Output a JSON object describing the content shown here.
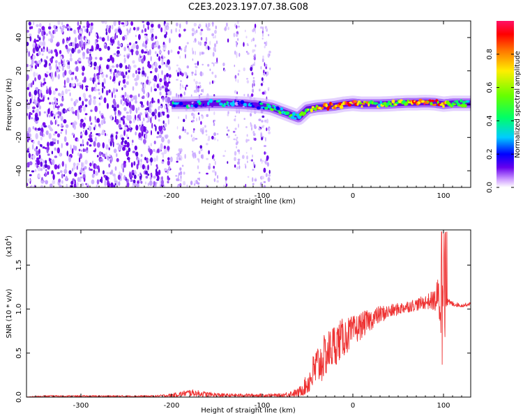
{
  "figure_title": "C2E3.2023.197.07.38.G08",
  "chart_data": [
    {
      "type": "heatmap",
      "description_label": "spectrogram",
      "xlabel": "Height of straight line (km)",
      "ylabel": "Frequency (Hz)",
      "xlim": [
        -360,
        130
      ],
      "ylim": [
        -50,
        50
      ],
      "x_ticks": [
        -300,
        -200,
        -100,
        0,
        100
      ],
      "y_ticks": [
        -40,
        -20,
        0,
        20,
        40
      ],
      "grid": false,
      "colorbar": {
        "label": "Normalized spectral amplitude",
        "range": [
          0.0,
          1.0
        ],
        "ticks": [
          0.0,
          0.2,
          0.4,
          0.6,
          0.8
        ],
        "tick_labels": [
          "0.0",
          "0.2",
          "0.4",
          "0.6",
          "0.8"
        ],
        "colormap": [
          "#ffffff",
          "#cc99ff",
          "#6600ee",
          "#0000ff",
          "#00ccff",
          "#00ff66",
          "#66ff00",
          "#ffee00",
          "#ff7700",
          "#ff0000",
          "#ff1166"
        ]
      },
      "noise_regions": [
        {
          "x": [
            -360,
            -200
          ],
          "freq_range": [
            -50,
            50
          ],
          "intensity": "dense purple speckle"
        },
        {
          "x": [
            -200,
            -90
          ],
          "freq_range": [
            -50,
            50
          ],
          "intensity": "sparse light-purple speckle in vertical streaks"
        }
      ],
      "signal_track": {
        "x": [
          -200,
          -180,
          -160,
          -140,
          -120,
          -100,
          -90,
          -80,
          -70,
          -60,
          -50,
          -40,
          -30,
          -20,
          -10,
          0,
          10,
          20,
          30,
          40,
          50,
          60,
          70,
          80,
          90,
          100,
          110,
          120,
          130
        ],
        "freq": [
          0,
          0,
          0.5,
          0.5,
          0,
          -1,
          -2,
          -4,
          -6,
          -8,
          -3,
          -2,
          -1.5,
          -1,
          0,
          0.5,
          0,
          0,
          0,
          0.2,
          0.5,
          0.8,
          0.8,
          1,
          0.8,
          0,
          0.5,
          0.5,
          0.5
        ],
        "amplitude": [
          0.25,
          0.25,
          0.3,
          0.3,
          0.25,
          0.3,
          0.4,
          0.45,
          0.5,
          0.5,
          0.6,
          0.75,
          0.85,
          0.8,
          0.85,
          0.9,
          0.8,
          0.7,
          0.55,
          0.6,
          0.65,
          0.7,
          0.85,
          0.9,
          0.8,
          0.9,
          0.6,
          0.5,
          0.5
        ]
      }
    },
    {
      "type": "line",
      "xlabel": "Height of straight line (km)",
      "ylabel": "SNR (10 * v/v)",
      "y_multiplier": "(x10",
      "y_multiplier_exp": "4",
      "y_multiplier_close": ")",
      "xlim": [
        -360,
        130
      ],
      "ylim": [
        0,
        1.9
      ],
      "x_ticks": [
        -300,
        -200,
        -100,
        0,
        100
      ],
      "y_ticks": [
        0.0,
        0.5,
        1.0,
        1.5
      ],
      "y_tick_labels": [
        "0.0",
        "0.5",
        "1.0",
        "1.5"
      ],
      "grid": false,
      "color": "#ee3333",
      "series": [
        {
          "x": [
            -360,
            -340,
            -300,
            -250,
            -220,
            -200,
            -180,
            -160,
            -140,
            -120,
            -100,
            -80,
            -60,
            -50,
            -45,
            -40,
            -35,
            -30,
            -20,
            -10,
            0,
            10,
            20,
            30,
            40,
            50,
            60,
            70,
            80,
            90,
            95,
            100,
            103,
            110,
            120,
            130
          ],
          "y": [
            0.0,
            0.01,
            0.01,
            0.01,
            0.01,
            0.02,
            0.05,
            0.03,
            0.02,
            0.02,
            0.02,
            0.02,
            0.05,
            0.15,
            0.25,
            0.35,
            0.4,
            0.48,
            0.6,
            0.68,
            0.74,
            0.82,
            0.88,
            0.94,
            0.97,
            1.0,
            1.03,
            1.05,
            1.08,
            1.1,
            1.12,
            1.05,
            1.08,
            1.06,
            1.04,
            1.06
          ],
          "spread": [
            0.005,
            0.01,
            0.01,
            0.01,
            0.01,
            0.02,
            0.04,
            0.03,
            0.02,
            0.02,
            0.02,
            0.02,
            0.05,
            0.12,
            0.2,
            0.25,
            0.25,
            0.25,
            0.25,
            0.22,
            0.18,
            0.15,
            0.12,
            0.1,
            0.08,
            0.07,
            0.07,
            0.07,
            0.08,
            0.12,
            0.3,
            0.85,
            0.05,
            0.03,
            0.02,
            0.02
          ]
        }
      ]
    }
  ]
}
